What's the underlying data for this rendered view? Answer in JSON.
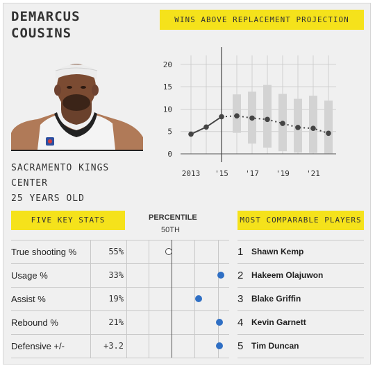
{
  "player": {
    "name_line1": "DEMARCUS",
    "name_line2": "COUSINS",
    "team": "SACRAMENTO KINGS",
    "position": "CENTER",
    "age": "25 YEARS OLD"
  },
  "labels": {
    "war_title": "WINS ABOVE REPLACEMENT PROJECTION",
    "five_key_stats": "FIVE KEY STATS",
    "percentile": "PERCENTILE",
    "percentile_mark": "50TH",
    "most_comparable": "MOST COMPARABLE PLAYERS"
  },
  "colors": {
    "accent_yellow": "#f5e21b",
    "dot_blue": "#2f6fc4",
    "bar_gray": "#d3d3d3",
    "line_dark": "#444444"
  },
  "key_stats": [
    {
      "name": "True shooting %",
      "value": "55%",
      "percentile": 43,
      "style": "hollow"
    },
    {
      "name": "Usage %",
      "value": "33%",
      "percentile": 97,
      "style": "filled"
    },
    {
      "name": "Assist %",
      "value": "19%",
      "percentile": 74,
      "style": "filled"
    },
    {
      "name": "Rebound %",
      "value": "21%",
      "percentile": 96,
      "style": "filled"
    },
    {
      "name": "Defensive +/-",
      "value": "+3.2",
      "percentile": 96,
      "style": "filled"
    }
  ],
  "comparable_players": [
    {
      "rank": "1",
      "name": "Shawn Kemp"
    },
    {
      "rank": "2",
      "name": "Hakeem Olajuwon"
    },
    {
      "rank": "3",
      "name": "Blake Griffin"
    },
    {
      "rank": "4",
      "name": "Kevin Garnett"
    },
    {
      "rank": "5",
      "name": "Tim Duncan"
    }
  ],
  "chart_data": {
    "type": "line",
    "title": "WINS ABOVE REPLACEMENT PROJECTION",
    "x_ticks": [
      "2013",
      "'15",
      "'17",
      "'19",
      "'21"
    ],
    "x_tick_years": [
      2013,
      2015,
      2017,
      2019,
      2021
    ],
    "y_ticks": [
      0,
      5,
      10,
      15,
      20
    ],
    "ylim": [
      0,
      22
    ],
    "xlim": [
      2012.5,
      2022.5
    ],
    "divider_year": 2015,
    "grid": true,
    "series": [
      {
        "x": [
          2013,
          2014,
          2015,
          2016,
          2017,
          2018,
          2019,
          2020,
          2021,
          2022
        ],
        "values": [
          4.4,
          6.0,
          8.3,
          8.5,
          8.0,
          7.7,
          6.8,
          5.9,
          5.7,
          4.6
        ]
      }
    ],
    "projection_ranges": [
      {
        "x": 2016,
        "low": 4.7,
        "high": 13.3
      },
      {
        "x": 2017,
        "low": 2.3,
        "high": 13.9
      },
      {
        "x": 2018,
        "low": 1.4,
        "high": 15.4
      },
      {
        "x": 2019,
        "low": 0.6,
        "high": 13.4
      },
      {
        "x": 2020,
        "low": 0.3,
        "high": 12.3
      },
      {
        "x": 2021,
        "low": 0.2,
        "high": 13.0
      },
      {
        "x": 2022,
        "low": 0.1,
        "high": 11.9
      }
    ]
  }
}
